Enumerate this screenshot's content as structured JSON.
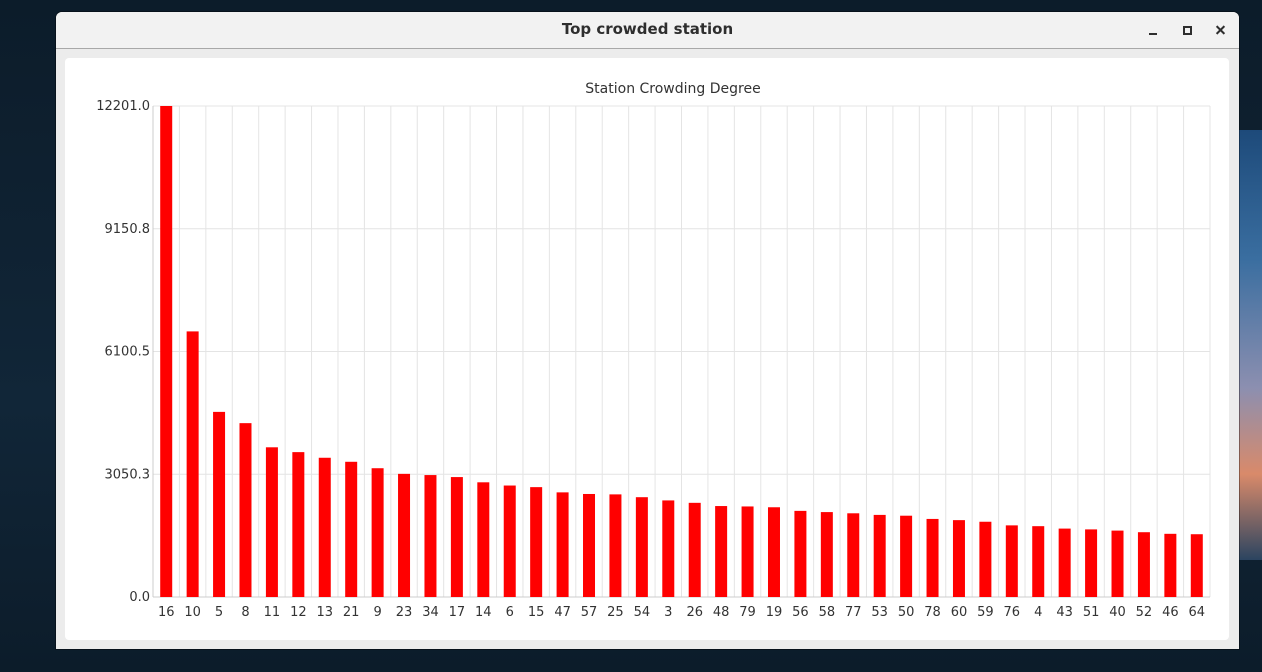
{
  "window": {
    "title": "Top crowded station"
  },
  "colors": {
    "bar": "#ff0000",
    "grid": "#e4e4e4",
    "axis": "#cccccc",
    "text": "#333333"
  },
  "chart_data": {
    "type": "bar",
    "title": "Station Crowding Degree",
    "xlabel": "",
    "ylabel": "",
    "ylim": [
      0,
      12201.0
    ],
    "yticks": [
      "0.0",
      "3050.3",
      "6100.5",
      "9150.8",
      "12201.0"
    ],
    "grid": true,
    "categories": [
      "16",
      "10",
      "5",
      "8",
      "11",
      "12",
      "13",
      "21",
      "9",
      "23",
      "34",
      "17",
      "14",
      "6",
      "15",
      "47",
      "57",
      "25",
      "54",
      "3",
      "26",
      "48",
      "79",
      "19",
      "56",
      "58",
      "77",
      "53",
      "50",
      "78",
      "60",
      "59",
      "76",
      "4",
      "43",
      "51",
      "40",
      "52",
      "46",
      "64"
    ],
    "values": [
      12201,
      6600,
      4600,
      4320,
      3720,
      3600,
      3460,
      3360,
      3200,
      3060,
      3030,
      2980,
      2850,
      2770,
      2730,
      2600,
      2560,
      2550,
      2480,
      2400,
      2340,
      2260,
      2250,
      2230,
      2140,
      2110,
      2080,
      2040,
      2020,
      1940,
      1910,
      1870,
      1780,
      1760,
      1700,
      1680,
      1650,
      1610,
      1570,
      1560
    ]
  }
}
